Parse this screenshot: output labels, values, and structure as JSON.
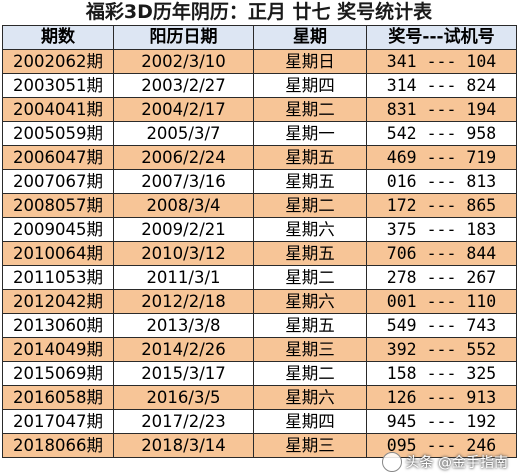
{
  "title": "福彩3D历年阴历：正月 廿七 奖号统计表",
  "columns": [
    "期数",
    "阳历日期",
    "星期",
    "奖号---试机号"
  ],
  "separator": "---",
  "colors": {
    "header_bg": "#dde6f3",
    "highlight_row_bg": "#f7c597",
    "plain_row_bg": "#ffffff",
    "border": "#2a2a2a"
  },
  "rows": [
    {
      "issue": "2002062期",
      "date": "2002/3/10",
      "weekday": "星期日",
      "prize": "341",
      "trial": "104"
    },
    {
      "issue": "2003051期",
      "date": "2003/2/27",
      "weekday": "星期四",
      "prize": "314",
      "trial": "824"
    },
    {
      "issue": "2004041期",
      "date": "2004/2/17",
      "weekday": "星期二",
      "prize": "831",
      "trial": "194"
    },
    {
      "issue": "2005059期",
      "date": "2005/3/7",
      "weekday": "星期一",
      "prize": "542",
      "trial": "958"
    },
    {
      "issue": "2006047期",
      "date": "2006/2/24",
      "weekday": "星期五",
      "prize": "469",
      "trial": "719"
    },
    {
      "issue": "2007067期",
      "date": "2007/3/16",
      "weekday": "星期五",
      "prize": "016",
      "trial": "813"
    },
    {
      "issue": "2008057期",
      "date": "2008/3/4",
      "weekday": "星期二",
      "prize": "172",
      "trial": "865"
    },
    {
      "issue": "2009045期",
      "date": "2009/2/21",
      "weekday": "星期六",
      "prize": "375",
      "trial": "183"
    },
    {
      "issue": "2010064期",
      "date": "2010/3/12",
      "weekday": "星期五",
      "prize": "706",
      "trial": "844"
    },
    {
      "issue": "2011053期",
      "date": "2011/3/1",
      "weekday": "星期二",
      "prize": "278",
      "trial": "267"
    },
    {
      "issue": "2012042期",
      "date": "2012/2/18",
      "weekday": "星期六",
      "prize": "001",
      "trial": "110"
    },
    {
      "issue": "2013060期",
      "date": "2013/3/8",
      "weekday": "星期五",
      "prize": "549",
      "trial": "743"
    },
    {
      "issue": "2014049期",
      "date": "2014/2/26",
      "weekday": "星期三",
      "prize": "392",
      "trial": "552"
    },
    {
      "issue": "2015069期",
      "date": "2015/3/17",
      "weekday": "星期二",
      "prize": "158",
      "trial": "325"
    },
    {
      "issue": "2016058期",
      "date": "2016/3/5",
      "weekday": "星期六",
      "prize": "126",
      "trial": "913"
    },
    {
      "issue": "2017047期",
      "date": "2017/2/23",
      "weekday": "星期四",
      "prize": "945",
      "trial": "192"
    },
    {
      "issue": "2018066期",
      "date": "2018/3/14",
      "weekday": "星期三",
      "prize": "095",
      "trial": "246"
    }
  ],
  "watermark": "头条 @金手指南"
}
